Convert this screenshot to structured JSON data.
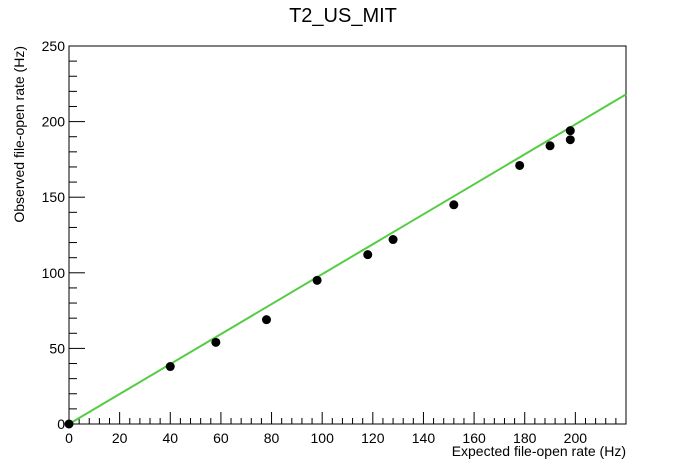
{
  "chart_data": {
    "type": "scatter",
    "title": "T2_US_MIT",
    "xlabel": "Expected file-open rate (Hz)",
    "ylabel": "Observed file-open rate (Hz)",
    "xlim": [
      0,
      220
    ],
    "ylim": [
      0,
      250
    ],
    "x_major_ticks": [
      0,
      20,
      40,
      60,
      80,
      100,
      120,
      140,
      160,
      180,
      200
    ],
    "y_major_ticks": [
      0,
      50,
      100,
      150,
      200,
      250
    ],
    "grid": false,
    "series": [
      {
        "kind": "points",
        "color": "#000000",
        "points": [
          [
            0,
            0
          ],
          [
            40,
            38
          ],
          [
            58,
            54
          ],
          [
            78,
            69
          ],
          [
            98,
            95
          ],
          [
            118,
            112
          ],
          [
            128,
            122
          ],
          [
            152,
            145
          ],
          [
            178,
            171
          ],
          [
            190,
            184
          ],
          [
            198,
            188
          ],
          [
            198,
            194
          ]
        ]
      },
      {
        "kind": "fit-line",
        "color": "#55cc44",
        "points": [
          [
            0,
            0
          ],
          [
            220,
            218
          ]
        ]
      }
    ]
  }
}
